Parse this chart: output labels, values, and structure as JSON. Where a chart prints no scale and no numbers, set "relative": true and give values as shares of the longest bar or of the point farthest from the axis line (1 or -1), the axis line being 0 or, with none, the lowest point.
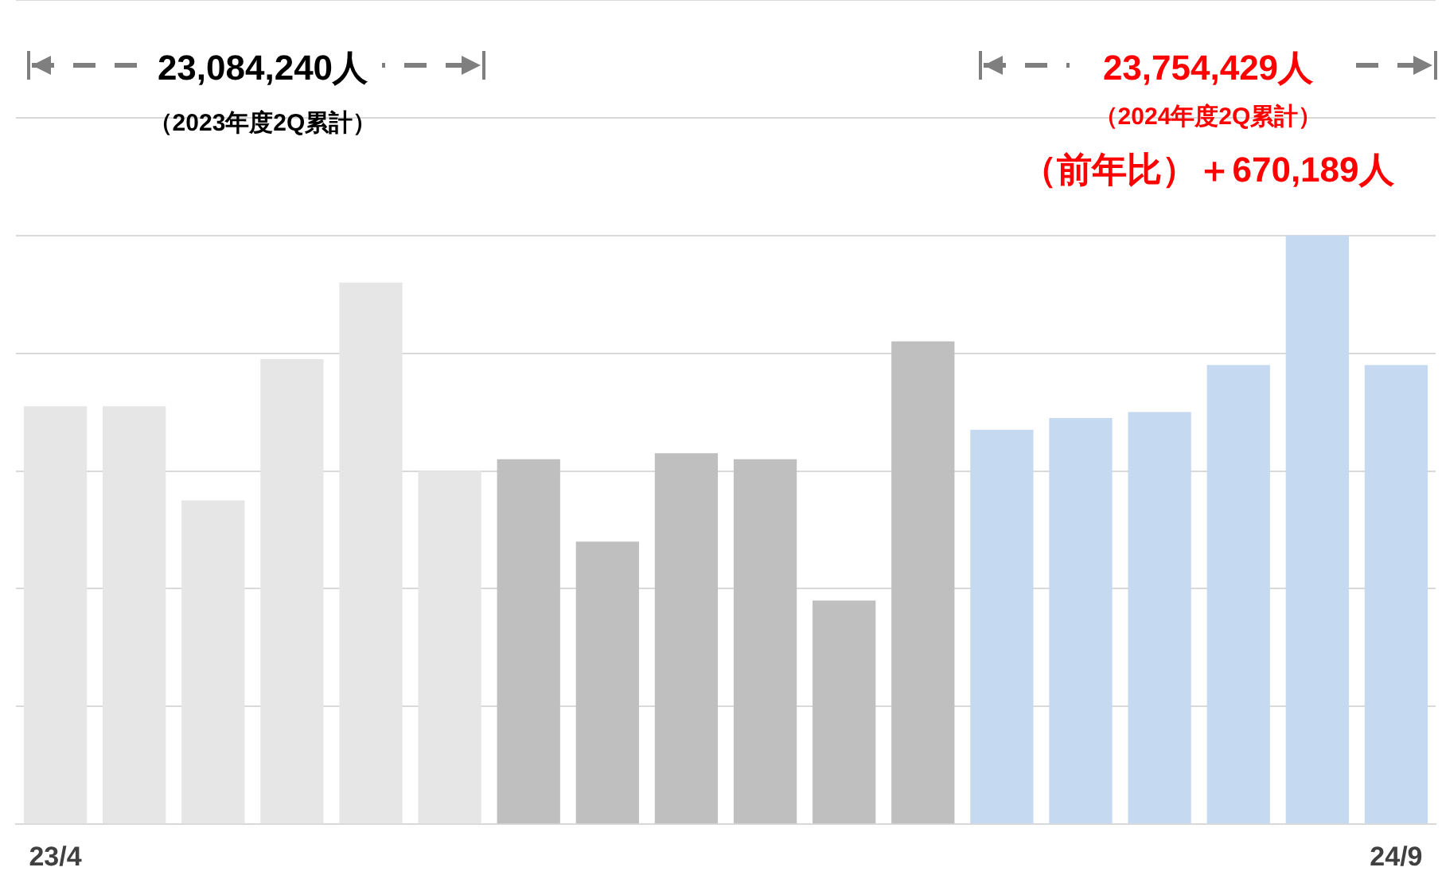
{
  "chart_data": {
    "type": "bar",
    "relative": true,
    "grid": "y",
    "categories": [
      "23/4",
      null,
      null,
      null,
      null,
      null,
      null,
      null,
      null,
      null,
      null,
      null,
      null,
      null,
      null,
      null,
      null,
      "24/9"
    ],
    "values": [
      0.71,
      0.71,
      0.55,
      0.79,
      0.92,
      0.6,
      0.62,
      0.48,
      0.63,
      0.62,
      0.38,
      0.82,
      0.67,
      0.69,
      0.7,
      0.78,
      1,
      0.78
    ],
    "colors": [
      "#e6e6e6",
      "#e6e6e6",
      "#e6e6e6",
      "#e6e6e6",
      "#e6e6e6",
      "#e6e6e6",
      "#bfbfbf",
      "#bfbfbf",
      "#bfbfbf",
      "#bfbfbf",
      "#bfbfbf",
      "#bfbfbf",
      "#c5d9f1",
      "#c5d9f1",
      "#c5d9f1",
      "#c5d9f1",
      "#c5d9f1",
      "#c5d9f1"
    ],
    "annotations": [
      "23,084,240人",
      "（2023年度2Q累計）",
      "23,754,429人",
      "（2024年度2Q累計）",
      "（前年比）＋670,189人"
    ]
  }
}
